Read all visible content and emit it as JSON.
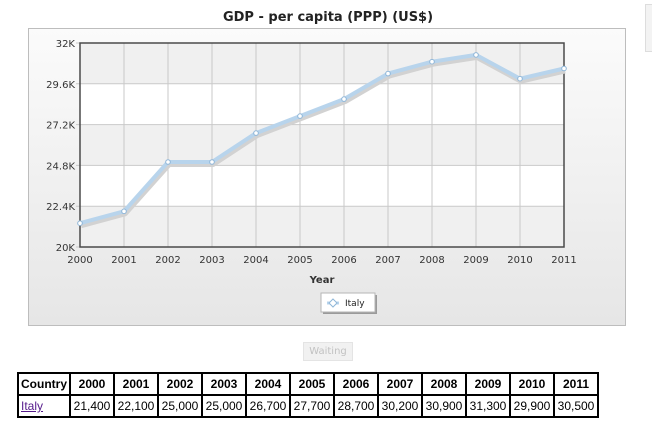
{
  "chart_data": {
    "type": "line",
    "title": "GDP - per capita (PPP) (US$)",
    "xlabel": "Year",
    "ylabel": "",
    "x": [
      2000,
      2001,
      2002,
      2003,
      2004,
      2005,
      2006,
      2007,
      2008,
      2009,
      2010,
      2011
    ],
    "y_ticks": [
      "20K",
      "22.4K",
      "24.8K",
      "27.2K",
      "29.6K",
      "32K"
    ],
    "ylim": [
      20000,
      32000
    ],
    "grid": true,
    "legend_position": "bottom-center",
    "series": [
      {
        "name": "Italy",
        "color": "#b8d4ec",
        "values": [
          21400,
          22100,
          25000,
          25000,
          26700,
          27700,
          28700,
          30200,
          30900,
          31300,
          29900,
          30500
        ]
      }
    ]
  },
  "status_label": "Waiting",
  "table": {
    "header_country": "Country",
    "years": [
      "2000",
      "2001",
      "2002",
      "2003",
      "2004",
      "2005",
      "2006",
      "2007",
      "2008",
      "2009",
      "2010",
      "2011"
    ],
    "rows": [
      {
        "country": "Italy",
        "values": [
          "21,400",
          "22,100",
          "25,000",
          "25,000",
          "26,700",
          "27,700",
          "28,700",
          "30,200",
          "30,900",
          "31,300",
          "29,900",
          "30,500"
        ]
      }
    ]
  }
}
